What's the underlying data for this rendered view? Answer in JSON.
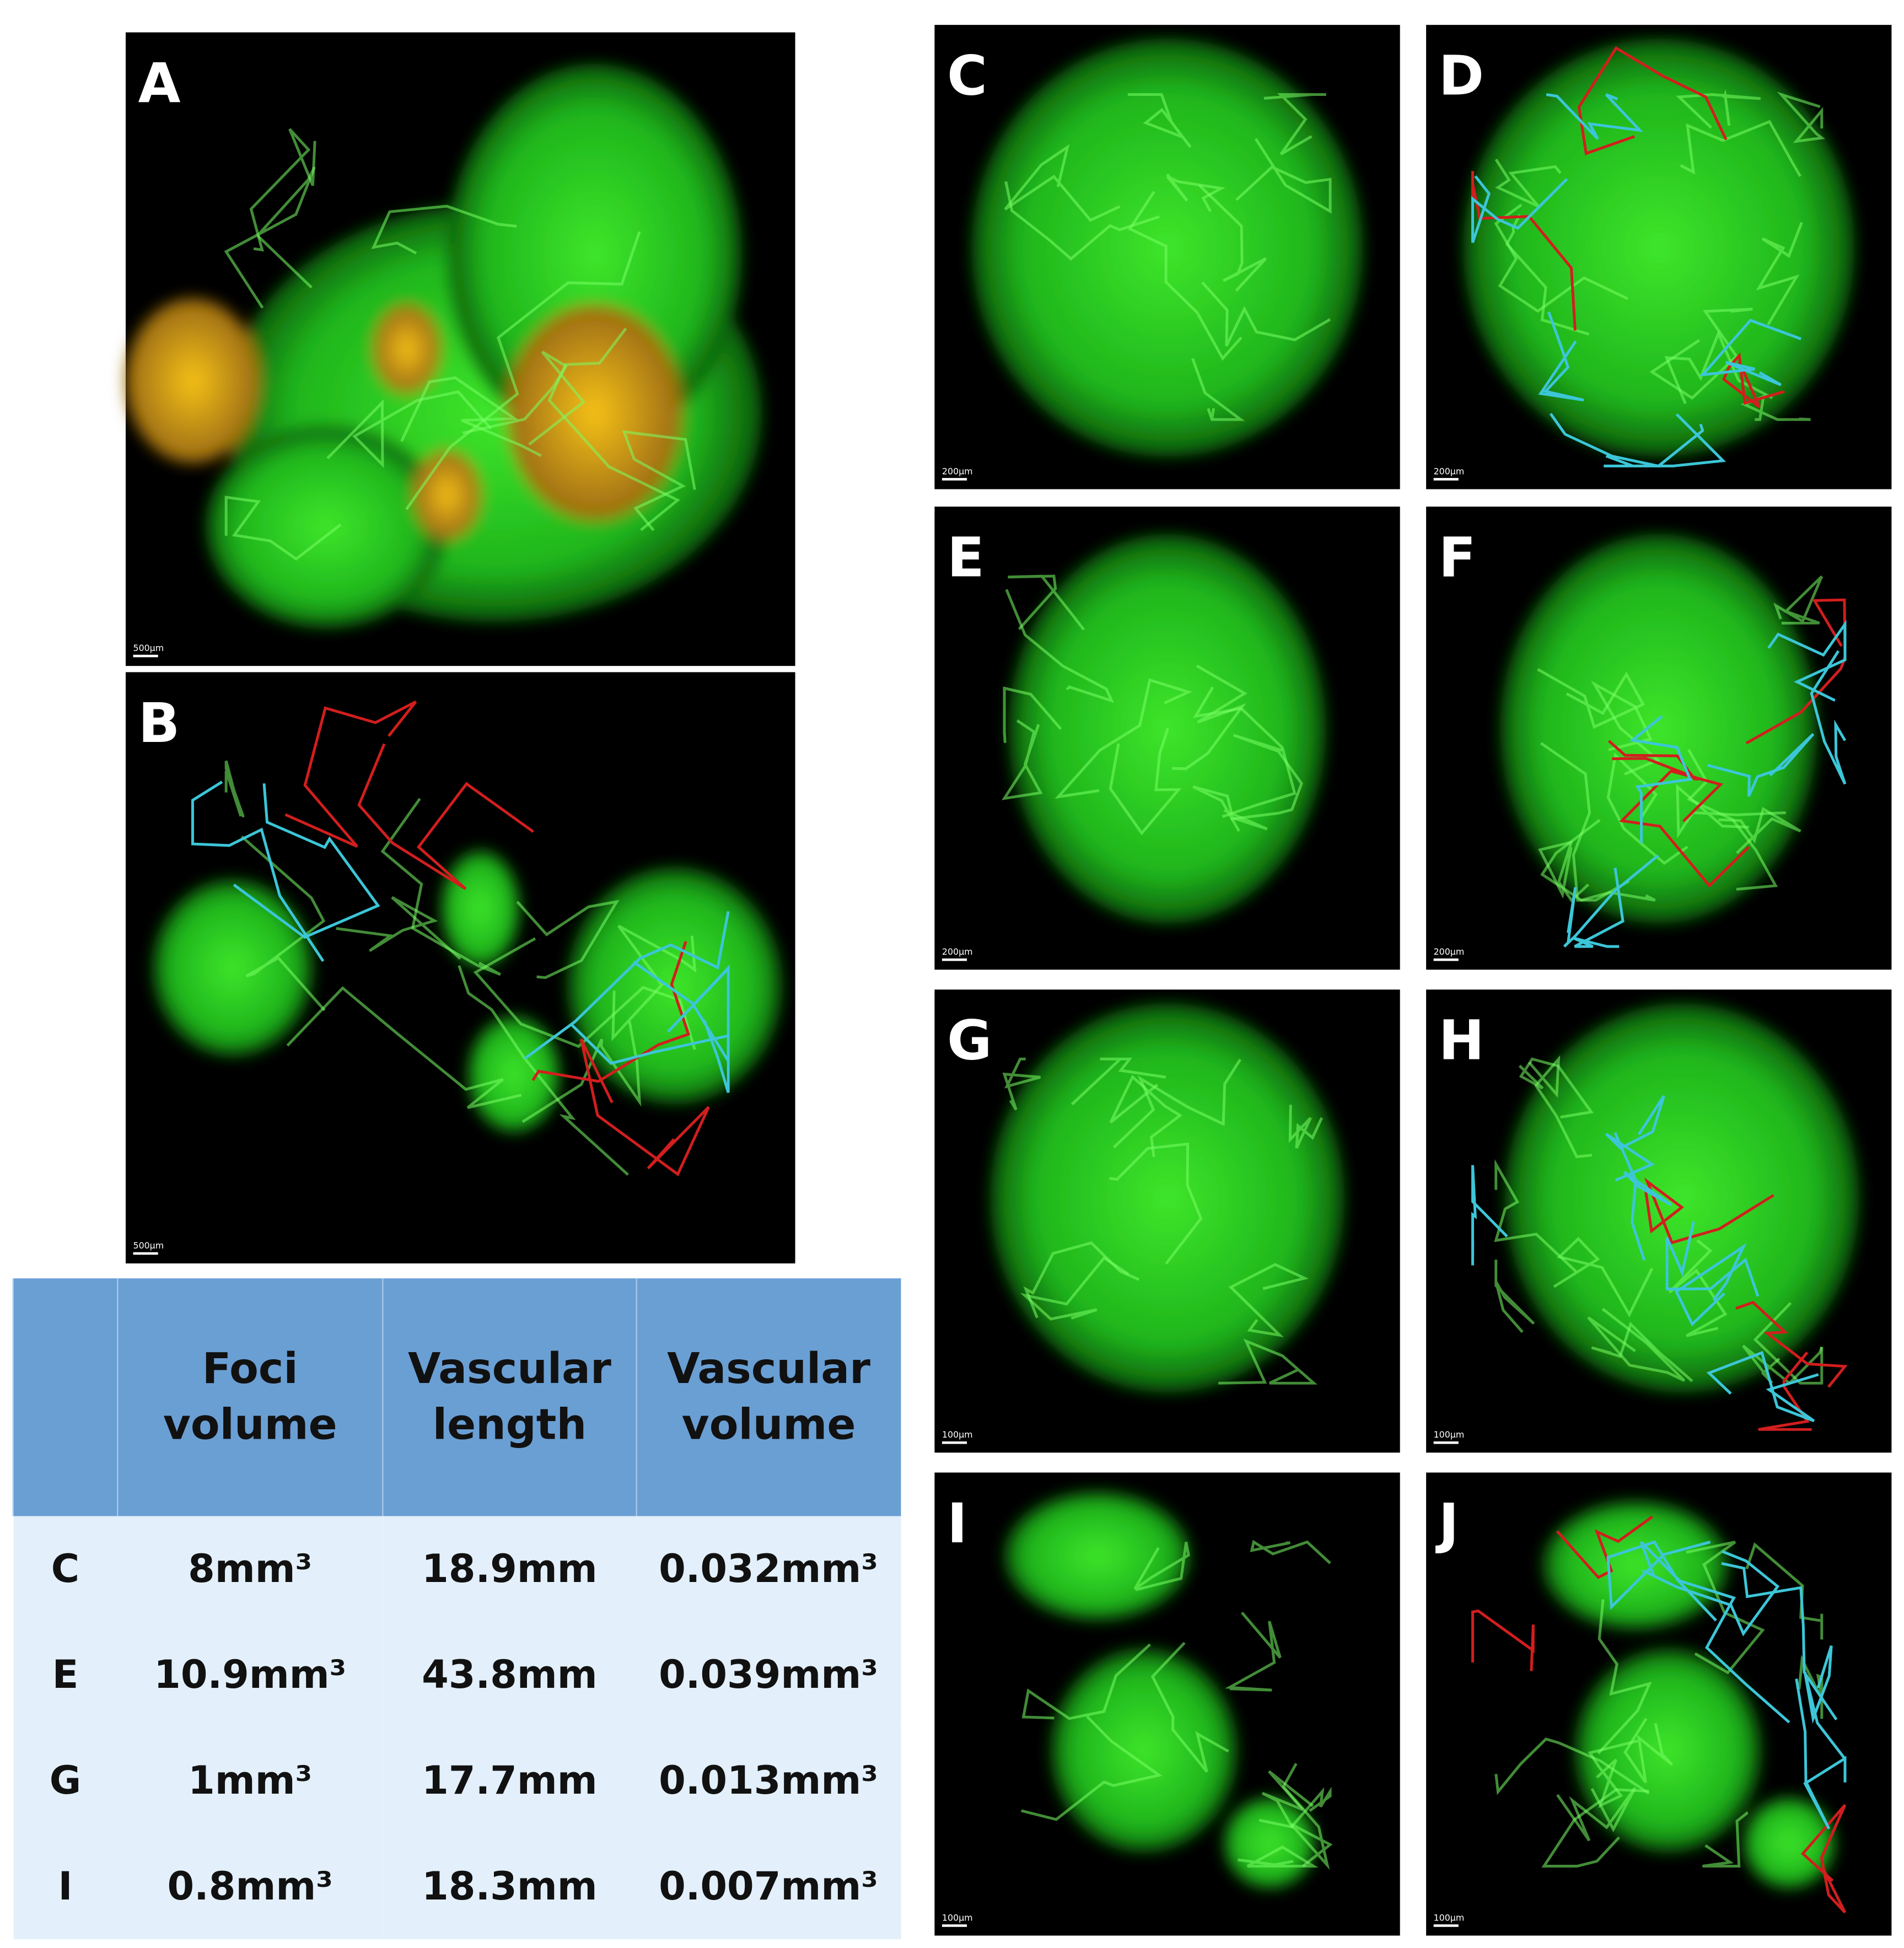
{
  "panels": [
    {
      "label": "A",
      "scale_bar": "500μm"
    },
    {
      "label": "B",
      "scale_bar": "500μm"
    },
    {
      "label": "C",
      "scale_bar": "200μm"
    },
    {
      "label": "D",
      "scale_bar": "200μm"
    },
    {
      "label": "E",
      "scale_bar": "200μm"
    },
    {
      "label": "F",
      "scale_bar": "200μm"
    },
    {
      "label": "G",
      "scale_bar": "100μm"
    },
    {
      "label": "H",
      "scale_bar": "100μm"
    },
    {
      "label": "I",
      "scale_bar": "100μm"
    },
    {
      "label": "J",
      "scale_bar": "100μm"
    }
  ],
  "table": {
    "columns": [
      "Foci volume",
      "Vascular length",
      "Vascular volume"
    ],
    "rows": [
      {
        "label": "C",
        "cells": [
          "8mm³",
          "18.9mm",
          "0.032mm³"
        ]
      },
      {
        "label": "E",
        "cells": [
          "10.9mm³",
          "43.8mm",
          "0.039mm³"
        ]
      },
      {
        "label": "G",
        "cells": [
          "1mm³",
          "17.7mm",
          "0.013mm³"
        ]
      },
      {
        "label": "I",
        "cells": [
          "0.8mm³",
          "18.3mm",
          "0.007mm³"
        ]
      }
    ]
  }
}
